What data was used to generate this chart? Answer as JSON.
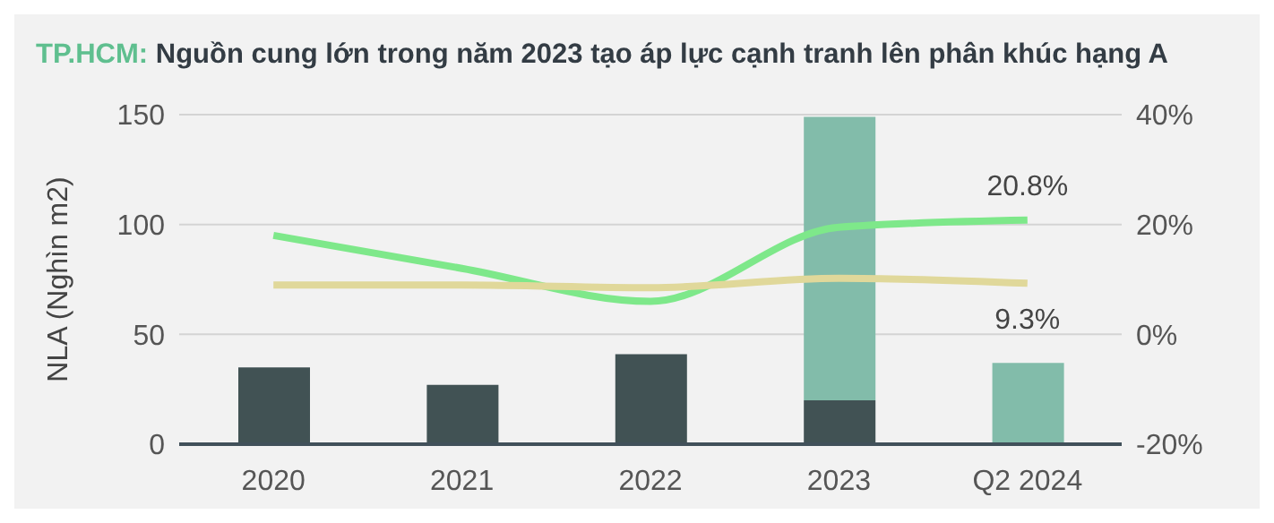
{
  "chart_data": {
    "type": "bar",
    "title": "TP.HCM:",
    "subtitle": "Nguồn cung lớn trong năm 2023 tạo áp lực cạnh tranh lên phân khúc hạng A",
    "ylabel": "NLA (Nghìn m2)",
    "categories": [
      "2020",
      "2021",
      "2022",
      "2023",
      "Q2 2024"
    ],
    "stacked": true,
    "grid": "y",
    "marker": "none",
    "line_style": "solid",
    "ylim": [
      0,
      150
    ],
    "yticks": [
      0,
      50,
      100,
      150
    ],
    "y2lim": [
      -20,
      40
    ],
    "y2ticks": [
      {
        "value": -20,
        "label": "-20%"
      },
      {
        "value": 0,
        "label": "0%"
      },
      {
        "value": 20,
        "label": "20%"
      },
      {
        "value": 40,
        "label": "40%"
      }
    ],
    "series": [
      {
        "color": "#415254",
        "values": [
          35,
          27,
          41,
          20,
          null
        ]
      },
      {
        "color": "#82bcaa",
        "values": [
          null,
          null,
          null,
          129,
          37
        ]
      },
      {
        "type": "line",
        "axis": "y2",
        "color": "#7ee88a",
        "values": [
          18,
          12,
          6,
          19.5,
          20.8
        ],
        "value_labels": [
          null,
          null,
          null,
          null,
          "20.8%"
        ]
      },
      {
        "type": "line",
        "axis": "y2",
        "color": "#e0d89a",
        "values": [
          9,
          9,
          8.5,
          10.2,
          9.3
        ],
        "value_labels": [
          null,
          null,
          null,
          null,
          "9.3%"
        ]
      }
    ]
  }
}
